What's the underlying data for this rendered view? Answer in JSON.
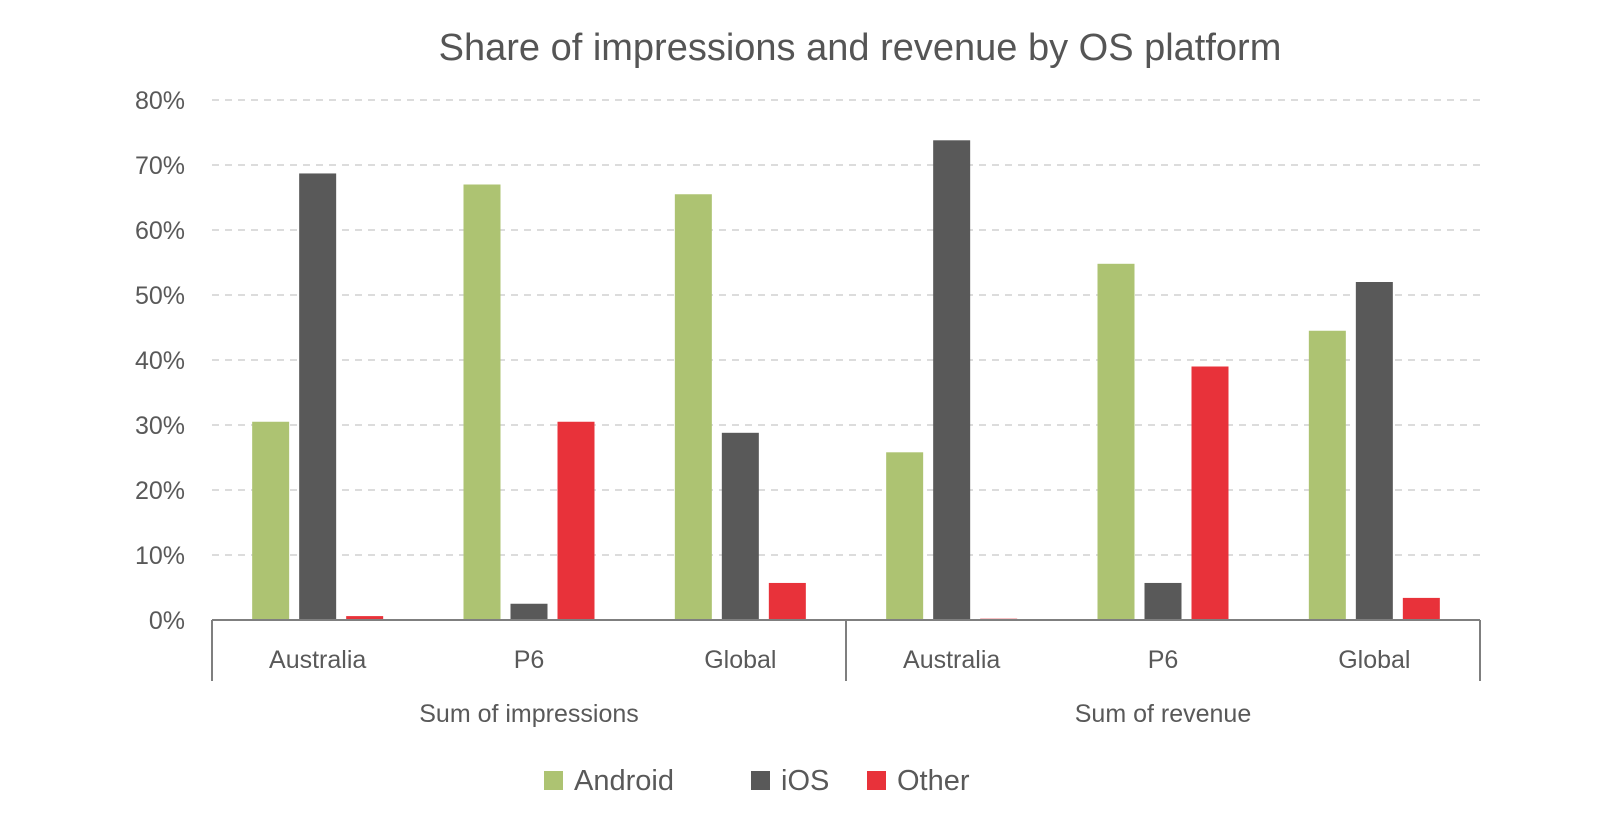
{
  "chart_data": {
    "type": "bar",
    "title": "Share of impressions and revenue by OS platform",
    "xlabel": "",
    "ylabel": "",
    "ylim": [
      0,
      0.8
    ],
    "yticks": [
      0,
      0.1,
      0.2,
      0.3,
      0.4,
      0.5,
      0.6,
      0.7,
      0.8
    ],
    "ytick_labels": [
      "0%",
      "10%",
      "20%",
      "30%",
      "40%",
      "50%",
      "60%",
      "70%",
      "80%"
    ],
    "grid": true,
    "legend_position": "bottom",
    "groups": [
      {
        "label": "Sum of impressions",
        "categories": [
          "Australia",
          "P6",
          "Global"
        ]
      },
      {
        "label": "Sum of revenue",
        "categories": [
          "Australia",
          "P6",
          "Global"
        ]
      }
    ],
    "series": [
      {
        "name": "Android",
        "color": "#adc372",
        "values": [
          0.305,
          0.67,
          0.655,
          0.258,
          0.548,
          0.445
        ]
      },
      {
        "name": "iOS",
        "color": "#595959",
        "values": [
          0.687,
          0.025,
          0.288,
          0.738,
          0.057,
          0.52
        ]
      },
      {
        "name": "Other",
        "color": "#e8323a",
        "values": [
          0.006,
          0.305,
          0.057,
          0.002,
          0.39,
          0.034
        ]
      }
    ]
  }
}
